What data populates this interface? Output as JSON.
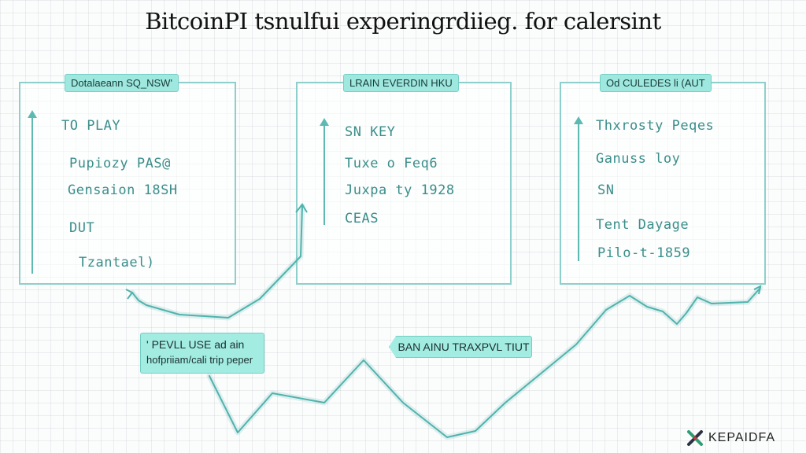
{
  "title": "BitcoinPI tsnulfui experingrdiieg. for calersint",
  "panels": [
    {
      "label": "Dotalaeann SQ_NSW'",
      "lines": [
        "TO PLAY",
        "Pupiozy PAS@",
        "Gensaion 18SH",
        "DUT",
        "Tzantael)"
      ]
    },
    {
      "label": "LRAIN EVERDIN HKU",
      "lines": [
        "SN KEY",
        "Tuxe o Feq6",
        "Juxpa ty 1928",
        "CEAS"
      ]
    },
    {
      "label": "Od CULEDES li (AUT",
      "lines": [
        "Thxrosty Peqes",
        "Ganuss loy",
        "SN",
        "Tent Dayage",
        "Pilo-t-1859"
      ]
    }
  ],
  "callouts": {
    "left": {
      "line1": "' PEVLL USE ad ain",
      "line2": "hofpriiam/cali trip peper"
    },
    "middle": {
      "text": "BAN AINU TRAXPVL TIUT"
    }
  },
  "brand": {
    "name": "KEPAIDFA",
    "icon": "x-logo-icon"
  },
  "colors": {
    "accent": "#5fb9b3",
    "label_fill": "#9fe8df",
    "panel_border": "#8fcfcb",
    "handwriting": "#3a8e8a",
    "title": "#111111"
  }
}
